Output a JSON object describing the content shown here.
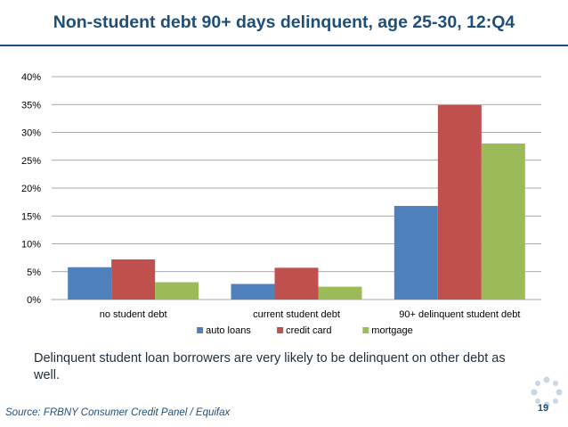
{
  "slide": {
    "title": "Non-student debt 90+ days delinquent, age 25-30, 12:Q4",
    "caption": "Delinquent student loan borrowers are very likely to be delinquent on other debt as well.",
    "source": "Source: FRBNY Consumer Credit Panel / Equifax",
    "page_number": "19",
    "title_color": "#1f4e79"
  },
  "chart_data": {
    "type": "bar",
    "categories": [
      "no student debt",
      "current student debt",
      "90+ delinquent student debt"
    ],
    "series": [
      {
        "name": "auto loans",
        "color": "#4f81bd",
        "values": [
          5.8,
          2.8,
          16.8
        ]
      },
      {
        "name": "credit card",
        "color": "#c0504d",
        "values": [
          7.2,
          5.7,
          34.9
        ]
      },
      {
        "name": "mortgage",
        "color": "#9bbb59",
        "values": [
          3.1,
          2.3,
          28.0
        ]
      }
    ],
    "yticks": [
      "0%",
      "5%",
      "10%",
      "15%",
      "20%",
      "25%",
      "30%",
      "35%",
      "40%"
    ],
    "ylim": [
      0,
      40
    ],
    "grid": true,
    "legend_position": "bottom"
  }
}
